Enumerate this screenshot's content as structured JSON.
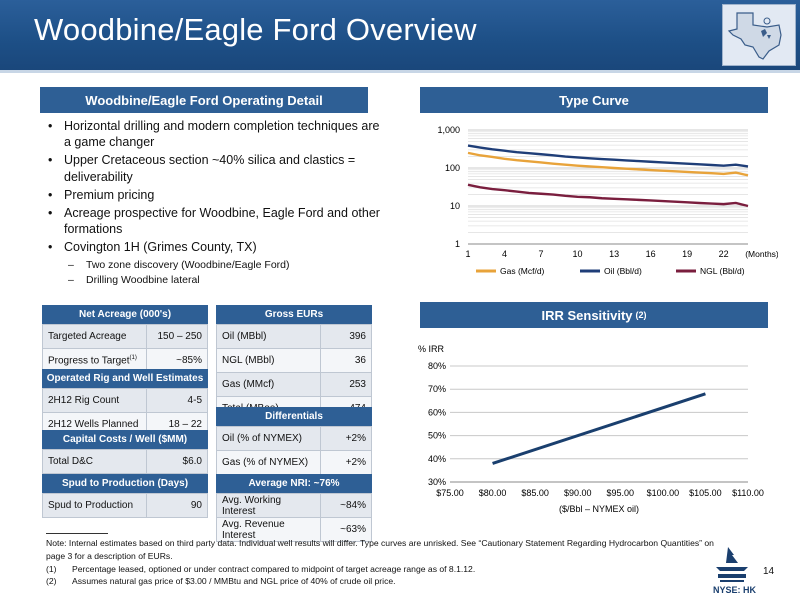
{
  "header": {
    "title": "Woodbine/Eagle Ford Overview"
  },
  "left": {
    "section_title": "Woodbine/Eagle Ford Operating Detail",
    "bullets": [
      "Horizontal drilling and modern completion techniques are a game changer",
      "Upper Cretaceous section ~40% silica and clastics = deliverability",
      "Premium pricing",
      "Acreage prospective for Woodbine, Eagle Ford and other formations",
      "Covington 1H (Grimes County, TX)"
    ],
    "sub_bullets": [
      "Two zone discovery (Woodbine/Eagle Ford)",
      "Drilling Woodbine lateral"
    ]
  },
  "tables": {
    "net_acreage": {
      "title": "Net Acreage (000's)",
      "rows": [
        {
          "label": "Targeted Acreage",
          "value": "150 – 250"
        },
        {
          "label": "Progress to Target",
          "sup": "(1)",
          "value": "~85%"
        }
      ]
    },
    "rig": {
      "title": "Operated Rig and Well Estimates",
      "rows": [
        {
          "label": "2H12 Rig Count",
          "value": "4-5"
        },
        {
          "label": "2H12 Wells Planned",
          "value": "18 – 22"
        }
      ]
    },
    "capital": {
      "title": "Capital Costs / Well ($MM)",
      "rows": [
        {
          "label": "Total D&C",
          "value": "$6.0"
        }
      ]
    },
    "spud": {
      "title": "Spud to Production (Days)",
      "rows": [
        {
          "label": "Spud to Production",
          "value": "90"
        }
      ]
    },
    "gross_eurs": {
      "title": "Gross EURs",
      "rows": [
        {
          "label": "Oil (MBbl)",
          "value": "396"
        },
        {
          "label": "NGL (MBbl)",
          "value": "36"
        },
        {
          "label": "Gas (MMcf)",
          "value": "253"
        },
        {
          "label": "Total (MBoe)",
          "value": "474"
        }
      ]
    },
    "differentials": {
      "title": "Differentials",
      "rows": [
        {
          "label": "Oil (% of NYMEX)",
          "value": "+2%"
        },
        {
          "label": "Gas (% of NYMEX)",
          "value": "+2%"
        }
      ]
    },
    "nri": {
      "title": "Average NRI: ~76%",
      "rows": [
        {
          "label": "Avg. Working Interest",
          "value": "~84%"
        },
        {
          "label": "Avg. Revenue Interest",
          "value": "~63%"
        }
      ]
    }
  },
  "type_curve": {
    "title": "Type Curve",
    "chart_data": {
      "type": "line",
      "log_scale_y": true,
      "ylim": [
        1,
        1000
      ],
      "xlim": [
        1,
        24
      ],
      "y_ticks": [
        "1",
        "10",
        "100",
        "1,000"
      ],
      "x_ticks": [
        "1",
        "4",
        "7",
        "10",
        "13",
        "16",
        "19",
        "22"
      ],
      "x_unit": "(Months)",
      "legend_position": "bottom",
      "x": [
        1,
        2,
        3,
        4,
        5,
        6,
        7,
        8,
        9,
        10,
        11,
        12,
        13,
        14,
        15,
        16,
        17,
        18,
        19,
        20,
        21,
        22,
        23,
        24
      ],
      "series": [
        {
          "name": "Gas (Mcf/d)",
          "color": "#e8a33a",
          "values": [
            250,
            215,
            195,
            175,
            160,
            150,
            140,
            130,
            122,
            115,
            110,
            105,
            100,
            96,
            92,
            88,
            85,
            82,
            79,
            76,
            73,
            70,
            76,
            64
          ]
        },
        {
          "name": "Oil (Bbl/d)",
          "color": "#1f3e78",
          "values": [
            390,
            345,
            310,
            285,
            260,
            245,
            230,
            215,
            200,
            190,
            180,
            172,
            165,
            158,
            152,
            146,
            140,
            135,
            130,
            125,
            120,
            115,
            122,
            110
          ]
        },
        {
          "name": "NGL (Bbl/d)",
          "color": "#7a1e3e",
          "values": [
            36,
            31,
            28,
            26,
            24,
            22,
            21,
            20,
            18.5,
            17.5,
            17,
            16,
            15.5,
            15,
            14.5,
            14,
            13.5,
            13,
            12.5,
            12,
            11.6,
            11.2,
            12,
            10
          ]
        }
      ]
    }
  },
  "irr": {
    "title": "IRR Sensitivity",
    "title_sup": "(2)",
    "chart_data": {
      "type": "line",
      "ylabel": "% IRR",
      "xlabel": "($/Bbl – NYMEX oil)",
      "xlim": [
        75,
        110
      ],
      "ylim": [
        30,
        80
      ],
      "x_ticks": [
        "$75.00",
        "$80.00",
        "$85.00",
        "$90.00",
        "$95.00",
        "$100.00",
        "$105.00",
        "$110.00"
      ],
      "y_ticks": [
        "30%",
        "40%",
        "50%",
        "60%",
        "70%",
        "80%"
      ],
      "grid": true,
      "color": "#1a3f6e",
      "x": [
        80,
        105
      ],
      "values": [
        38,
        68
      ]
    }
  },
  "footnotes": {
    "note": "Note: Internal estimates based on third party data. Individual well results will differ. Type curves are unrisked.  See “Cautionary Statement Regarding Hydrocarbon Quantities” on page 3 for a description of EURs.",
    "items": [
      {
        "n": "(1)",
        "text": "Percentage leased, optioned or under contract compared to midpoint of target acreage range as of 8.1.12."
      },
      {
        "n": "(2)",
        "text": "Assumes natural gas price of $3.00 / MMBtu and NGL price of 40% of crude oil price."
      }
    ]
  },
  "page_number": "14",
  "ticker": "NYSE: HK"
}
